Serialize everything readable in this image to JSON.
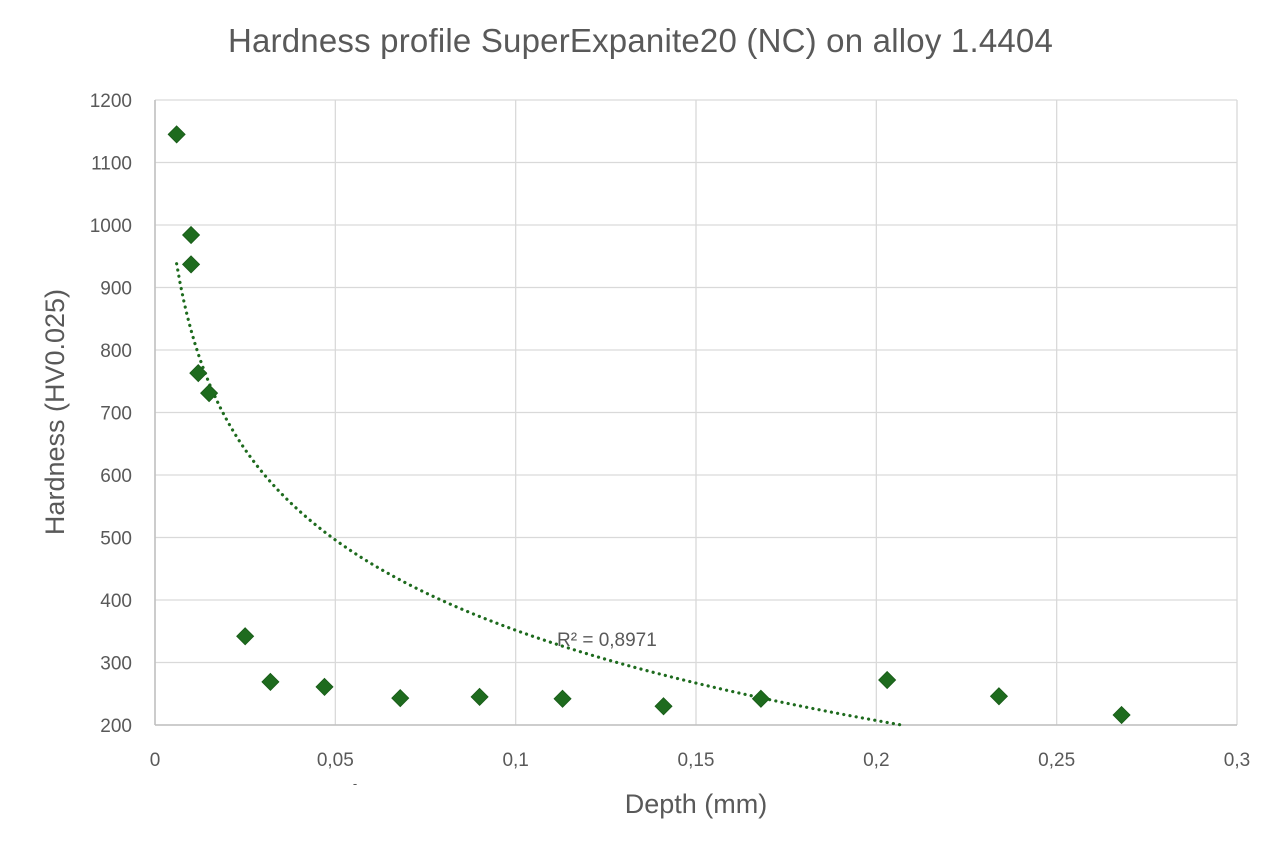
{
  "chart_data": {
    "type": "scatter",
    "title": "Hardness profile SuperExpanite20 (NC) on alloy 1.4404",
    "xlabel": "Depth (mm)",
    "ylabel": "Hardness (HV0.025)",
    "xlim": [
      0,
      0.3
    ],
    "ylim": [
      200,
      1200
    ],
    "x_ticks": [
      "0",
      "0,05",
      "0,1",
      "0,15",
      "0,2",
      "0,25",
      "0,3"
    ],
    "x_tick_values": [
      0,
      0.05,
      0.1,
      0.15,
      0.2,
      0.25,
      0.3
    ],
    "y_ticks": [
      "200",
      "300",
      "400",
      "500",
      "600",
      "700",
      "800",
      "900",
      "1000",
      "1100",
      "1200"
    ],
    "y_tick_values": [
      200,
      300,
      400,
      500,
      600,
      700,
      800,
      900,
      1000,
      1100,
      1200
    ],
    "grid": true,
    "legend": null,
    "marker": "diamond",
    "marker_color": "#1E6B1E",
    "series": [
      {
        "name": "Hardness",
        "x": [
          0.006,
          0.01,
          0.01,
          0.012,
          0.015,
          0.025,
          0.032,
          0.047,
          0.068,
          0.09,
          0.113,
          0.141,
          0.168,
          0.203,
          0.234,
          0.268
        ],
        "y": [
          1145,
          984,
          937,
          763,
          731,
          342,
          269,
          261,
          243,
          245,
          242,
          230,
          242,
          272,
          246,
          216
        ]
      }
    ],
    "trendline": {
      "type": "logarithmic",
      "style": "dotted",
      "color": "#1E6B1E",
      "x_range": [
        0.006,
        0.207
      ],
      "y_at_start": 938,
      "y_at_end": 200,
      "r_squared_label": "R² = 0,8971",
      "r_squared": 0.8971
    },
    "annotations": [
      "R² = 0,8971",
      "-"
    ]
  },
  "ui": {
    "stray_mark": "-"
  }
}
